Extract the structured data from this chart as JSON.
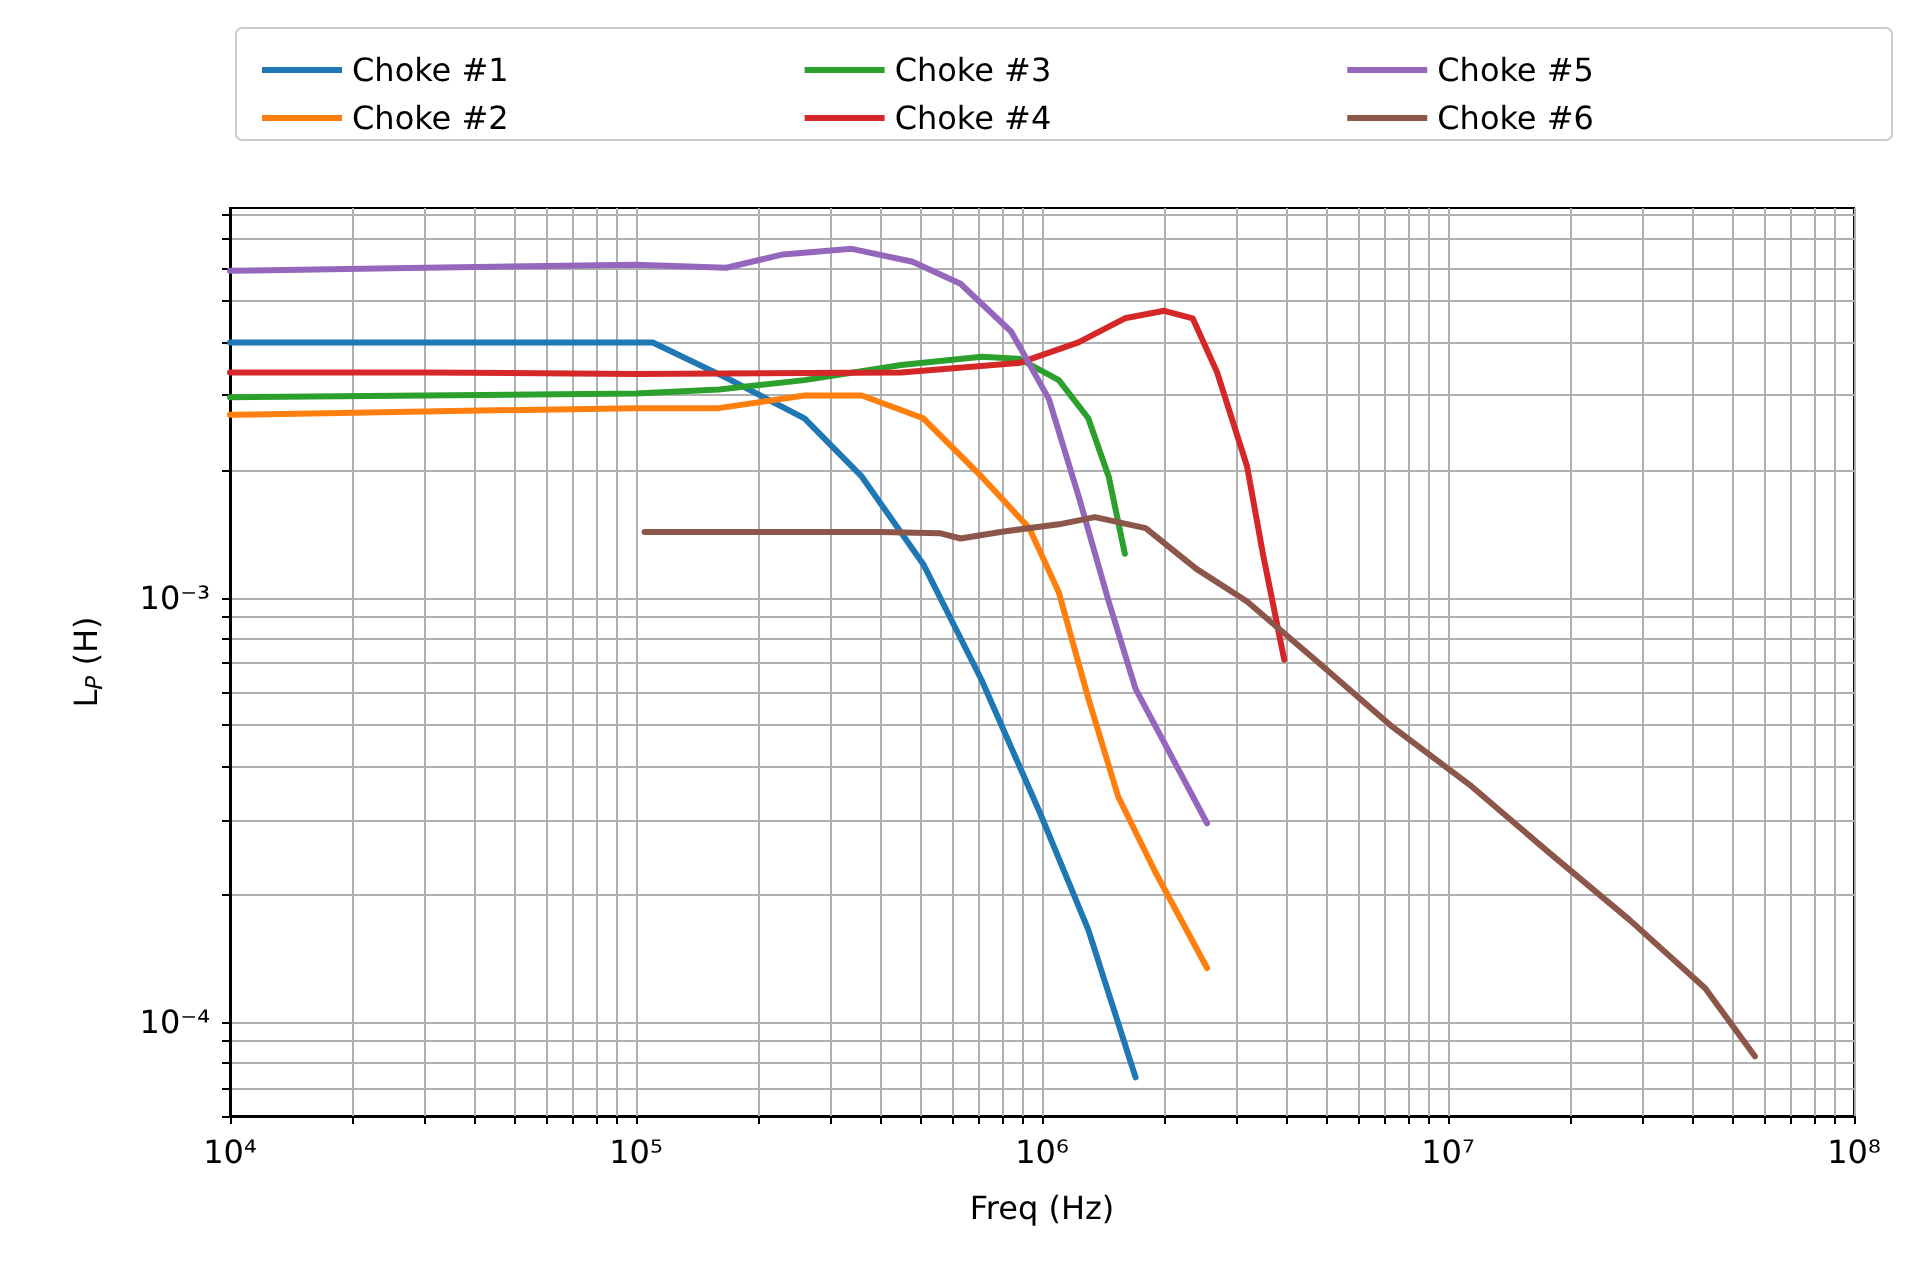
{
  "chart_data": {
    "type": "line",
    "xlabel": "Freq (Hz)",
    "ylabel": "L$_{P}$ (H)",
    "log": "xy",
    "grid": true,
    "legend": "top",
    "line_style": "solid",
    "marker": "none",
    "xlim": [
      10000,
      100000000
    ],
    "ylim": [
      6e-05,
      0.0083
    ],
    "xticks": [
      {
        "value": 10000,
        "label": "10⁴"
      },
      {
        "value": 20000,
        "label": null
      },
      {
        "value": 30000,
        "label": null
      },
      {
        "value": 40000,
        "label": null
      },
      {
        "value": 50000,
        "label": null
      },
      {
        "value": 60000,
        "label": null
      },
      {
        "value": 70000,
        "label": null
      },
      {
        "value": 80000,
        "label": null
      },
      {
        "value": 90000,
        "label": null
      },
      {
        "value": 100000,
        "label": "10⁵"
      },
      {
        "value": 200000,
        "label": null
      },
      {
        "value": 300000,
        "label": null
      },
      {
        "value": 400000,
        "label": null
      },
      {
        "value": 500000,
        "label": null
      },
      {
        "value": 600000,
        "label": null
      },
      {
        "value": 700000,
        "label": null
      },
      {
        "value": 800000,
        "label": null
      },
      {
        "value": 900000,
        "label": null
      },
      {
        "value": 1000000,
        "label": "10⁶"
      },
      {
        "value": 2000000,
        "label": null
      },
      {
        "value": 3000000,
        "label": null
      },
      {
        "value": 4000000,
        "label": null
      },
      {
        "value": 5000000,
        "label": null
      },
      {
        "value": 6000000,
        "label": null
      },
      {
        "value": 7000000,
        "label": null
      },
      {
        "value": 8000000,
        "label": null
      },
      {
        "value": 9000000,
        "label": null
      },
      {
        "value": 10000000,
        "label": "10⁷"
      },
      {
        "value": 20000000,
        "label": null
      },
      {
        "value": 30000000,
        "label": null
      },
      {
        "value": 40000000,
        "label": null
      },
      {
        "value": 50000000,
        "label": null
      },
      {
        "value": 60000000,
        "label": null
      },
      {
        "value": 70000000,
        "label": null
      },
      {
        "value": 80000000,
        "label": null
      },
      {
        "value": 90000000,
        "label": null
      },
      {
        "value": 100000000,
        "label": "10⁸"
      }
    ],
    "yticks": [
      {
        "value": 6e-05,
        "label": null
      },
      {
        "value": 7e-05,
        "label": null
      },
      {
        "value": 8e-05,
        "label": null
      },
      {
        "value": 9e-05,
        "label": null
      },
      {
        "value": 0.0001,
        "label": "10⁻⁴"
      },
      {
        "value": 0.0002,
        "label": null
      },
      {
        "value": 0.0003,
        "label": null
      },
      {
        "value": 0.0004,
        "label": null
      },
      {
        "value": 0.0005,
        "label": null
      },
      {
        "value": 0.0006,
        "label": null
      },
      {
        "value": 0.0007,
        "label": null
      },
      {
        "value": 0.0008,
        "label": null
      },
      {
        "value": 0.0009,
        "label": null
      },
      {
        "value": 0.001,
        "label": "10⁻³"
      },
      {
        "value": 0.002,
        "label": null
      },
      {
        "value": 0.003,
        "label": null
      },
      {
        "value": 0.004,
        "label": null
      },
      {
        "value": 0.005,
        "label": null
      },
      {
        "value": 0.006,
        "label": null
      },
      {
        "value": 0.007,
        "label": null
      },
      {
        "value": 0.008,
        "label": null
      }
    ],
    "series": [
      {
        "name": "Choke #1",
        "color": "#1f77b4",
        "x": [
          10000,
          30000,
          100000,
          110000,
          167000,
          260000,
          360000,
          510000,
          710000,
          990000,
          1300000,
          1700000
        ],
        "values": [
          0.004,
          0.004,
          0.004,
          0.004,
          0.0033,
          0.00265,
          0.00193,
          0.0012,
          0.00064,
          0.00031,
          0.000165,
          7.4e-05
        ]
      },
      {
        "name": "Choke #2",
        "color": "#ff7f0e",
        "x": [
          10000,
          30000,
          100000,
          160000,
          260000,
          360000,
          510000,
          710000,
          930000,
          1100000,
          1300000,
          1540000,
          1900000,
          2550000
        ],
        "values": [
          0.0027,
          0.00275,
          0.0028,
          0.0028,
          0.003,
          0.003,
          0.00265,
          0.00193,
          0.00146,
          0.00103,
          0.00058,
          0.00034,
          0.000226,
          0.000134
        ]
      },
      {
        "name": "Choke #3",
        "color": "#2ca02c",
        "x": [
          10000,
          30000,
          100000,
          160000,
          260000,
          450000,
          710000,
          880000,
          1100000,
          1300000,
          1460000,
          1600000
        ],
        "values": [
          0.00297,
          0.003,
          0.00303,
          0.0031,
          0.00326,
          0.00354,
          0.0037,
          0.00366,
          0.00326,
          0.00265,
          0.00193,
          0.00127
        ]
      },
      {
        "name": "Choke #4",
        "color": "#d62728",
        "x": [
          10000,
          30000,
          100000,
          450000,
          880000,
          1230000,
          1600000,
          2000000,
          2350000,
          2700000,
          3200000,
          3500000,
          3950000
        ],
        "values": [
          0.0034,
          0.0034,
          0.00337,
          0.0034,
          0.00358,
          0.004,
          0.00456,
          0.00475,
          0.00456,
          0.0034,
          0.00204,
          0.00127,
          0.000715
        ]
      },
      {
        "name": "Choke #5",
        "color": "#9467bd",
        "x": [
          10000,
          30000,
          100000,
          167000,
          230000,
          340000,
          480000,
          630000,
          840000,
          1040000,
          1230000,
          1460000,
          1700000,
          2150000,
          2550000
        ],
        "values": [
          0.0059,
          0.006,
          0.0061,
          0.006,
          0.00645,
          0.00665,
          0.0062,
          0.0055,
          0.00424,
          0.00294,
          0.00174,
          0.00098,
          0.00061,
          0.0004,
          0.000294
        ]
      },
      {
        "name": "Choke #6",
        "color": "#8c564b",
        "x": [
          105000,
          200000,
          400000,
          560000,
          630000,
          790000,
          1100000,
          1350000,
          1800000,
          2400000,
          3200000,
          4700000,
          7300000,
          11400000,
          17800000,
          28000000,
          43000000,
          57000000
        ],
        "values": [
          0.00143,
          0.00143,
          0.00143,
          0.00142,
          0.00138,
          0.00143,
          0.00149,
          0.00155,
          0.00146,
          0.00117,
          0.00098,
          0.000715,
          0.000496,
          0.00036,
          0.00025,
          0.000174,
          0.00012,
          8.3e-05
        ]
      }
    ]
  }
}
